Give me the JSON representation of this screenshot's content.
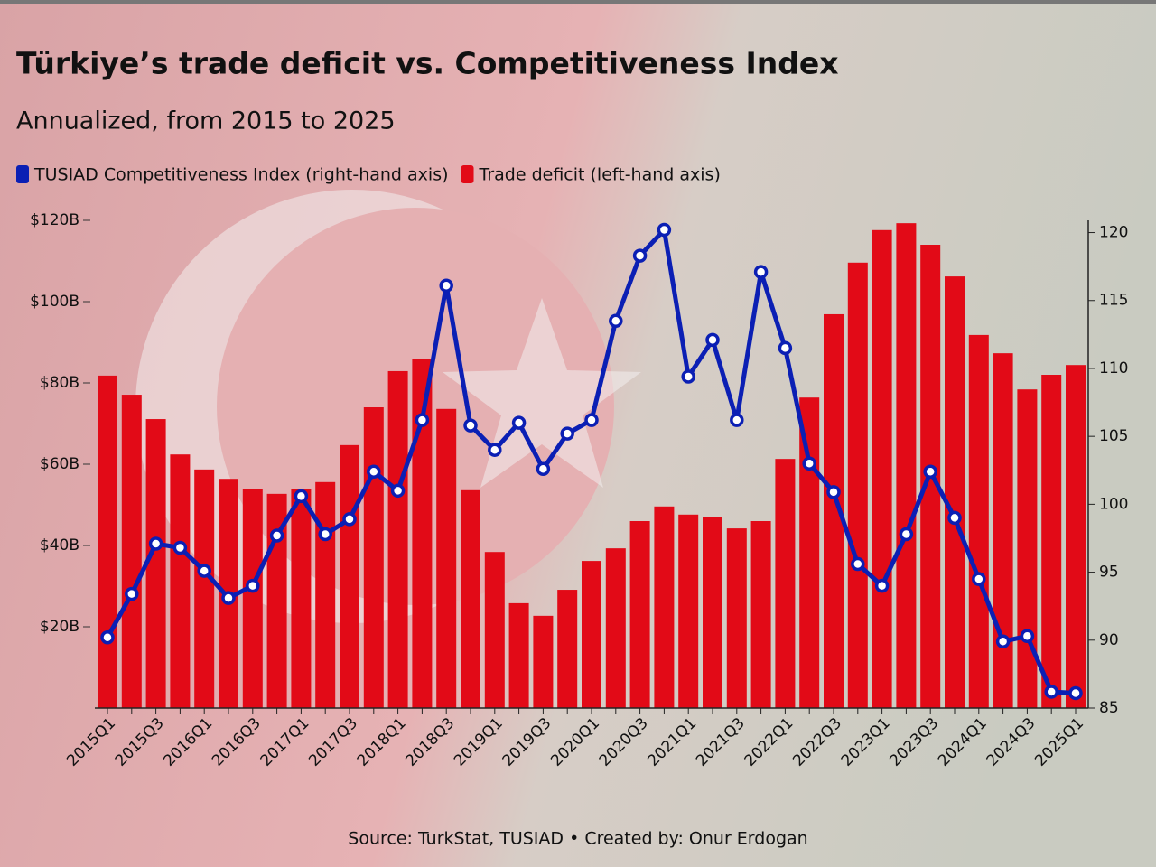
{
  "chart_data": {
    "type": "combo",
    "title": "Türkiye’s trade deficit vs. Competitiveness Index",
    "subtitle": "Annualized, from 2015 to 2025",
    "source": "Source: TurkStat, TUSIAD • Created by: Onur Erdogan",
    "categories": [
      "2015Q1",
      null,
      "2015Q3",
      null,
      "2016Q1",
      null,
      "2016Q3",
      null,
      "2017Q1",
      null,
      "2017Q3",
      null,
      "2018Q1",
      null,
      "2018Q3",
      null,
      "2019Q1",
      null,
      "2019Q3",
      null,
      "2020Q1",
      null,
      "2020Q3",
      null,
      "2021Q1",
      null,
      "2021Q3",
      null,
      "2022Q1",
      null,
      "2022Q3",
      null,
      "2023Q1",
      null,
      "2023Q3",
      null,
      "2024Q1",
      null,
      "2024Q3",
      null,
      "2025Q1"
    ],
    "series": [
      {
        "name": "TUSIAD Competitiveness Index (right-hand axis)",
        "type": "line",
        "axis": "y2",
        "color": "#0b1fb4",
        "values": [
          90.2,
          93.4,
          97.1,
          96.8,
          95.1,
          93.1,
          94.0,
          97.7,
          100.6,
          97.8,
          98.9,
          102.4,
          101.0,
          106.2,
          116.1,
          105.8,
          104.0,
          106.0,
          102.6,
          105.2,
          106.2,
          113.5,
          118.3,
          120.2,
          109.4,
          112.1,
          106.2,
          117.1,
          111.5,
          103.0,
          100.9,
          95.6,
          94.0,
          97.8,
          102.4,
          99.0,
          94.5,
          89.9,
          90.3,
          86.2,
          86.1
        ]
      },
      {
        "name": "Trade deficit (left-hand axis)",
        "type": "bar",
        "axis": "y",
        "color": "#e20a17",
        "values": [
          81.8,
          77.1,
          71.1,
          62.4,
          58.7,
          56.4,
          54.0,
          52.7,
          53.8,
          55.6,
          64.7,
          74.0,
          82.9,
          85.8,
          73.6,
          53.6,
          38.4,
          25.8,
          22.7,
          29.1,
          36.2,
          39.3,
          46.0,
          49.6,
          47.6,
          46.9,
          44.2,
          46.0,
          61.3,
          76.4,
          96.9,
          109.6,
          117.6,
          119.3,
          114.0,
          106.2,
          91.8,
          87.3,
          78.4,
          82.0,
          84.4
        ]
      }
    ],
    "ylim": [
      0,
      120
    ],
    "yticks": [
      {
        "value": 20,
        "label": "$20B"
      },
      {
        "value": 40,
        "label": "$40B"
      },
      {
        "value": 60,
        "label": "$60B"
      },
      {
        "value": 80,
        "label": "$80B"
      },
      {
        "value": 100,
        "label": "$100B"
      },
      {
        "value": 120,
        "label": "$120B"
      }
    ],
    "y2lim": [
      85,
      120.9
    ],
    "y2ticks": [
      85,
      90,
      95,
      100,
      105,
      110,
      115,
      120
    ]
  }
}
